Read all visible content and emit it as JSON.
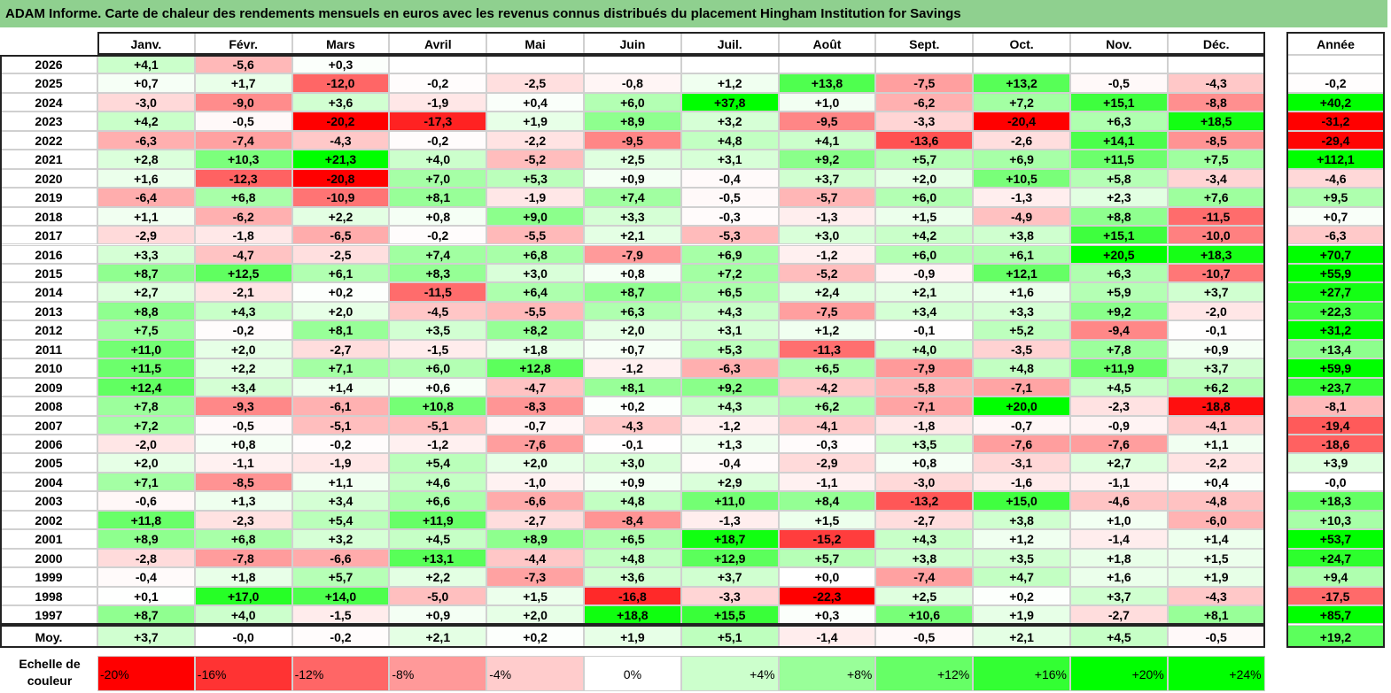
{
  "title": "ADAM Informe. Carte de chaleur des rendements mensuels en euros avec les revenus connus distribués du placement Hingham Institution for Savings",
  "chart_data": {
    "type": "heatmap",
    "columns": [
      "Janv.",
      "Févr.",
      "Mars",
      "Avril",
      "Mai",
      "Juin",
      "Juil.",
      "Août",
      "Sept.",
      "Oct.",
      "Nov.",
      "Déc."
    ],
    "year_column": "Année",
    "rows": [
      {
        "label": "2026",
        "months": [
          "+4,1",
          "-5,6",
          "+0,3",
          "",
          "",
          "",
          "",
          "",
          "",
          "",
          "",
          ""
        ],
        "year": ""
      },
      {
        "label": "2025",
        "months": [
          "+0,7",
          "+1,7",
          "-12,0",
          "-0,2",
          "-2,5",
          "-0,8",
          "+1,2",
          "+13,8",
          "-7,5",
          "+13,2",
          "-0,5",
          "-4,3"
        ],
        "year": "-0,2"
      },
      {
        "label": "2024",
        "months": [
          "-3,0",
          "-9,0",
          "+3,6",
          "-1,9",
          "+0,4",
          "+6,0",
          "+37,8",
          "+1,0",
          "-6,2",
          "+7,2",
          "+15,1",
          "-8,8"
        ],
        "year": "+40,2"
      },
      {
        "label": "2023",
        "months": [
          "+4,2",
          "-0,5",
          "-20,2",
          "-17,3",
          "+1,9",
          "+8,9",
          "+3,2",
          "-9,5",
          "-3,3",
          "-20,4",
          "+6,3",
          "+18,5"
        ],
        "year": "-31,2"
      },
      {
        "label": "2022",
        "months": [
          "-6,3",
          "-7,4",
          "-4,3",
          "-0,2",
          "-2,2",
          "-9,5",
          "+4,8",
          "+4,1",
          "-13,6",
          "-2,6",
          "+14,1",
          "-8,5"
        ],
        "year": "-29,4"
      },
      {
        "label": "2021",
        "months": [
          "+2,8",
          "+10,3",
          "+21,3",
          "+4,0",
          "-5,2",
          "+2,5",
          "+3,1",
          "+9,2",
          "+5,7",
          "+6,9",
          "+11,5",
          "+7,5"
        ],
        "year": "+112,1"
      },
      {
        "label": "2020",
        "months": [
          "+1,6",
          "-12,3",
          "-20,8",
          "+7,0",
          "+5,3",
          "+0,9",
          "-0,4",
          "+3,7",
          "+2,0",
          "+10,5",
          "+5,8",
          "-3,4"
        ],
        "year": "-4,6"
      },
      {
        "label": "2019",
        "months": [
          "-6,4",
          "+6,8",
          "-10,9",
          "+8,1",
          "-1,9",
          "+7,4",
          "-0,5",
          "-5,7",
          "+6,0",
          "-1,3",
          "+2,3",
          "+7,6"
        ],
        "year": "+9,5"
      },
      {
        "label": "2018",
        "months": [
          "+1,1",
          "-6,2",
          "+2,2",
          "+0,8",
          "+9,0",
          "+3,3",
          "-0,3",
          "-1,3",
          "+1,5",
          "-4,9",
          "+8,8",
          "-11,5"
        ],
        "year": "+0,7"
      },
      {
        "label": "2017",
        "months": [
          "-2,9",
          "-1,8",
          "-6,5",
          "-0,2",
          "-5,5",
          "+2,1",
          "-5,3",
          "+3,0",
          "+4,2",
          "+3,8",
          "+15,1",
          "-10,0"
        ],
        "year": "-6,3"
      },
      {
        "label": "2016",
        "months": [
          "+3,3",
          "-4,7",
          "-2,5",
          "+7,4",
          "+6,8",
          "-7,9",
          "+6,9",
          "-1,2",
          "+6,0",
          "+6,1",
          "+20,5",
          "+18,3"
        ],
        "year": "+70,7"
      },
      {
        "label": "2015",
        "months": [
          "+8,7",
          "+12,5",
          "+6,1",
          "+8,3",
          "+3,0",
          "+0,8",
          "+7,2",
          "-5,2",
          "-0,9",
          "+12,1",
          "+6,3",
          "-10,7"
        ],
        "year": "+55,9"
      },
      {
        "label": "2014",
        "months": [
          "+2,7",
          "-2,1",
          "+0,2",
          "-11,5",
          "+6,4",
          "+8,7",
          "+6,5",
          "+2,4",
          "+2,1",
          "+1,6",
          "+5,9",
          "+3,7"
        ],
        "year": "+27,7"
      },
      {
        "label": "2013",
        "months": [
          "+8,8",
          "+4,3",
          "+2,0",
          "-4,5",
          "-5,5",
          "+6,3",
          "+4,3",
          "-7,5",
          "+3,4",
          "+3,3",
          "+9,2",
          "-2,0"
        ],
        "year": "+22,3"
      },
      {
        "label": "2012",
        "months": [
          "+7,5",
          "-0,2",
          "+8,1",
          "+3,5",
          "+8,2",
          "+2,0",
          "+3,1",
          "+1,2",
          "-0,1",
          "+5,2",
          "-9,4",
          "-0,1"
        ],
        "year": "+31,2"
      },
      {
        "label": "2011",
        "months": [
          "+11,0",
          "+2,0",
          "-2,7",
          "-1,5",
          "+1,8",
          "+0,7",
          "+5,3",
          "-11,3",
          "+4,0",
          "-3,5",
          "+7,8",
          "+0,9"
        ],
        "year": "+13,4"
      },
      {
        "label": "2010",
        "months": [
          "+11,5",
          "+2,2",
          "+7,1",
          "+6,0",
          "+12,8",
          "-1,2",
          "-6,3",
          "+6,5",
          "-7,9",
          "+4,8",
          "+11,9",
          "+3,7"
        ],
        "year": "+59,9"
      },
      {
        "label": "2009",
        "months": [
          "+12,4",
          "+3,4",
          "+1,4",
          "+0,6",
          "-4,7",
          "+8,1",
          "+9,2",
          "-4,2",
          "-5,8",
          "-7,1",
          "+4,5",
          "+6,2"
        ],
        "year": "+23,7"
      },
      {
        "label": "2008",
        "months": [
          "+7,8",
          "-9,3",
          "-6,1",
          "+10,8",
          "-8,3",
          "+0,2",
          "+4,3",
          "+6,2",
          "-7,1",
          "+20,0",
          "-2,3",
          "-18,8"
        ],
        "year": "-8,1"
      },
      {
        "label": "2007",
        "months": [
          "+7,2",
          "-0,5",
          "-5,1",
          "-5,1",
          "-0,7",
          "-4,3",
          "-1,2",
          "-4,1",
          "-1,8",
          "-0,7",
          "-0,9",
          "-4,1"
        ],
        "year": "-19,4"
      },
      {
        "label": "2006",
        "months": [
          "-2,0",
          "+0,8",
          "-0,2",
          "-1,2",
          "-7,6",
          "-0,1",
          "+1,3",
          "-0,3",
          "+3,5",
          "-7,6",
          "-7,6",
          "+1,1"
        ],
        "year": "-18,6"
      },
      {
        "label": "2005",
        "months": [
          "+2,0",
          "-1,1",
          "-1,9",
          "+5,4",
          "+2,0",
          "+3,0",
          "-0,4",
          "-2,9",
          "+0,8",
          "-3,1",
          "+2,7",
          "-2,2"
        ],
        "year": "+3,9"
      },
      {
        "label": "2004",
        "months": [
          "+7,1",
          "-8,5",
          "+1,1",
          "+4,6",
          "-1,0",
          "+0,9",
          "+2,9",
          "-1,1",
          "-3,0",
          "-1,6",
          "-1,1",
          "+0,4"
        ],
        "year": "-0,0"
      },
      {
        "label": "2003",
        "months": [
          "-0,6",
          "+1,3",
          "+3,4",
          "+6,6",
          "-6,6",
          "+4,8",
          "+11,0",
          "+8,4",
          "-13,2",
          "+15,0",
          "-4,6",
          "-4,8"
        ],
        "year": "+18,3"
      },
      {
        "label": "2002",
        "months": [
          "+11,8",
          "-2,3",
          "+5,4",
          "+11,9",
          "-2,7",
          "-8,4",
          "-1,3",
          "+1,5",
          "-2,7",
          "+3,8",
          "+1,0",
          "-6,0"
        ],
        "year": "+10,3"
      },
      {
        "label": "2001",
        "months": [
          "+8,9",
          "+6,8",
          "+3,2",
          "+4,5",
          "+8,9",
          "+6,5",
          "+18,7",
          "-15,2",
          "+4,3",
          "+1,2",
          "-1,4",
          "+1,4"
        ],
        "year": "+53,7"
      },
      {
        "label": "2000",
        "months": [
          "-2,8",
          "-7,8",
          "-6,6",
          "+13,1",
          "-4,4",
          "+4,8",
          "+12,9",
          "+5,7",
          "+3,8",
          "+3,5",
          "+1,8",
          "+1,5"
        ],
        "year": "+24,7"
      },
      {
        "label": "1999",
        "months": [
          "-0,4",
          "+1,8",
          "+5,7",
          "+2,2",
          "-7,3",
          "+3,6",
          "+3,7",
          "+0,0",
          "-7,4",
          "+4,7",
          "+1,6",
          "+1,9"
        ],
        "year": "+9,4"
      },
      {
        "label": "1998",
        "months": [
          "+0,1",
          "+17,0",
          "+14,0",
          "-5,0",
          "+1,5",
          "-16,8",
          "-3,3",
          "-22,3",
          "+2,5",
          "+0,2",
          "+3,7",
          "-4,3"
        ],
        "year": "-17,5"
      },
      {
        "label": "1997",
        "months": [
          "+8,7",
          "+4,0",
          "-1,5",
          "+0,9",
          "+2,0",
          "+18,8",
          "+15,5",
          "+0,3",
          "+10,6",
          "+1,9",
          "-2,7",
          "+8,1"
        ],
        "year": "+85,7"
      }
    ],
    "average": {
      "label": "Moy.",
      "months": [
        "+3,7",
        "-0,0",
        "-0,2",
        "+2,1",
        "+0,2",
        "+1,9",
        "+5,1",
        "-1,4",
        "-0,5",
        "+2,1",
        "+4,5",
        "-0,5"
      ],
      "year": "+19,2"
    },
    "legend": {
      "label": "Echelle de couleur",
      "steps": [
        {
          "text": "-20%",
          "value": -20
        },
        {
          "text": "-16%",
          "value": -16
        },
        {
          "text": "-12%",
          "value": -12
        },
        {
          "text": "-8%",
          "value": -8
        },
        {
          "text": "-4%",
          "value": -4
        },
        {
          "text": "0%",
          "value": 0
        },
        {
          "text": "+4%",
          "value": 4
        },
        {
          "text": "+8%",
          "value": 8
        },
        {
          "text": "+12%",
          "value": 12
        },
        {
          "text": "+16%",
          "value": 16
        },
        {
          "text": "+20%",
          "value": 20
        },
        {
          "text": "+24%",
          "value": 24
        }
      ]
    },
    "colors": {
      "negative_max": "#ff0000",
      "zero": "#ffffff",
      "positive_max": "#00ff00"
    }
  }
}
